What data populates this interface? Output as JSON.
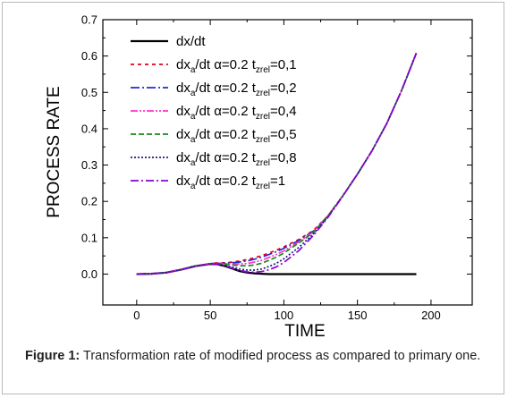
{
  "caption": {
    "label": "Figure 1:",
    "text": "Transformation rate of modified process as compared to primary one."
  },
  "chart_data": {
    "type": "line",
    "title": "",
    "xlabel": "TIME",
    "ylabel": "PROCESS RATE",
    "xlim": [
      -23,
      228
    ],
    "ylim": [
      -0.085,
      0.7
    ],
    "x_ticks": [
      0,
      50,
      100,
      150,
      200
    ],
    "y_ticks": [
      0.0,
      0.1,
      0.2,
      0.3,
      0.4,
      0.5,
      0.6,
      0.7
    ],
    "x_tick_labels": [
      "0",
      "50",
      "100",
      "150",
      "200"
    ],
    "y_tick_labels": [
      "0.0",
      "0.1",
      "0.2",
      "0.3",
      "0.4",
      "0.5",
      "0.6",
      "0.7"
    ],
    "grid": false,
    "legend_position": "top-left",
    "series": [
      {
        "name": "dx/dt",
        "color": "#000000",
        "dash": "solid",
        "x": [
          0,
          10,
          20,
          30,
          40,
          50,
          55,
          60,
          65,
          70,
          75,
          80,
          85,
          90,
          100,
          120,
          150,
          190
        ],
        "y": [
          0.0,
          0.001,
          0.004,
          0.012,
          0.022,
          0.028,
          0.027,
          0.022,
          0.015,
          0.008,
          0.004,
          0.002,
          0.001,
          0.0,
          0.0,
          0.0,
          0.0,
          0.0
        ]
      },
      {
        "name": "dxa/dt α=0.2 tzrel=0,1",
        "legend": {
          "pre": "dx",
          "sub1": "a",
          "mid": "/dt α=0.2 t",
          "sub2": "zrel",
          "post": "=0,1"
        },
        "color": "#e3001b",
        "dash": "4,4",
        "x": [
          0,
          10,
          20,
          30,
          40,
          50,
          55,
          60,
          65,
          70,
          75,
          80,
          85,
          90,
          95,
          100,
          110,
          120,
          130,
          140,
          150,
          160,
          170,
          180,
          190
        ],
        "y": [
          0.0,
          0.001,
          0.004,
          0.012,
          0.022,
          0.029,
          0.031,
          0.031,
          0.033,
          0.036,
          0.04,
          0.045,
          0.051,
          0.058,
          0.066,
          0.075,
          0.095,
          0.12,
          0.16,
          0.215,
          0.275,
          0.34,
          0.415,
          0.505,
          0.608
        ]
      },
      {
        "name": "dxa/dt α=0.2 tzrel=0,2",
        "legend": {
          "pre": "dx",
          "sub1": "a",
          "mid": "/dt α=0.2 t",
          "sub2": "zrel",
          "post": "=0,2"
        },
        "color": "#1f2bd6",
        "dash": "10,3,2,3",
        "x": [
          0,
          10,
          20,
          30,
          40,
          50,
          55,
          60,
          65,
          70,
          75,
          80,
          85,
          90,
          95,
          100,
          110,
          120,
          130,
          140,
          150,
          160,
          170,
          180,
          190
        ],
        "y": [
          0.0,
          0.001,
          0.004,
          0.012,
          0.022,
          0.029,
          0.03,
          0.03,
          0.031,
          0.033,
          0.036,
          0.041,
          0.047,
          0.054,
          0.062,
          0.071,
          0.092,
          0.118,
          0.16,
          0.215,
          0.275,
          0.34,
          0.415,
          0.505,
          0.608
        ]
      },
      {
        "name": "dxa/dt α=0.2 tzrel=0,4",
        "legend": {
          "pre": "dx",
          "sub1": "a",
          "mid": "/dt α=0.2 t",
          "sub2": "zrel",
          "post": "=0,4"
        },
        "color": "#ff33cc",
        "dash": "8,2,2,2,2,2",
        "x": [
          0,
          10,
          20,
          30,
          40,
          50,
          55,
          60,
          65,
          70,
          75,
          80,
          85,
          90,
          95,
          100,
          110,
          120,
          130,
          140,
          150,
          160,
          170,
          180,
          190
        ],
        "y": [
          0.0,
          0.001,
          0.004,
          0.012,
          0.022,
          0.029,
          0.03,
          0.029,
          0.028,
          0.028,
          0.029,
          0.033,
          0.038,
          0.046,
          0.054,
          0.064,
          0.088,
          0.116,
          0.16,
          0.215,
          0.275,
          0.34,
          0.415,
          0.505,
          0.608
        ]
      },
      {
        "name": "dxa/dt α=0.2 tzrel=0,5",
        "legend": {
          "pre": "dx",
          "sub1": "a",
          "mid": "/dt α=0.2 t",
          "sub2": "zrel",
          "post": "=0,5"
        },
        "color": "#1a8a1a",
        "dash": "6,3",
        "x": [
          0,
          10,
          20,
          30,
          40,
          50,
          55,
          60,
          65,
          70,
          75,
          80,
          85,
          90,
          95,
          100,
          110,
          120,
          130,
          140,
          150,
          160,
          170,
          180,
          190
        ],
        "y": [
          0.0,
          0.001,
          0.004,
          0.012,
          0.022,
          0.029,
          0.029,
          0.027,
          0.025,
          0.023,
          0.023,
          0.025,
          0.03,
          0.038,
          0.047,
          0.058,
          0.085,
          0.114,
          0.16,
          0.215,
          0.275,
          0.34,
          0.415,
          0.505,
          0.608
        ]
      },
      {
        "name": "dxa/dt α=0.2 tzrel=0,8",
        "legend": {
          "pre": "dx",
          "sub1": "a",
          "mid": "/dt α=0.2 t",
          "sub2": "zrel",
          "post": "=0,8"
        },
        "color": "#1c1c7a",
        "dash": "2,2",
        "x": [
          0,
          10,
          20,
          30,
          40,
          50,
          55,
          60,
          65,
          70,
          75,
          80,
          85,
          90,
          95,
          100,
          110,
          120,
          130,
          140,
          150,
          160,
          170,
          180,
          190
        ],
        "y": [
          0.0,
          0.001,
          0.004,
          0.012,
          0.022,
          0.028,
          0.028,
          0.024,
          0.019,
          0.014,
          0.011,
          0.011,
          0.014,
          0.021,
          0.03,
          0.042,
          0.073,
          0.11,
          0.158,
          0.215,
          0.275,
          0.34,
          0.415,
          0.505,
          0.608
        ]
      },
      {
        "name": "dxa/dt α=0.2 tzrel=1",
        "legend": {
          "pre": "dx",
          "sub1": "a",
          "mid": "/dt α=0.2 t",
          "sub2": "zrel",
          "post": "=1"
        },
        "color": "#8a00d4",
        "dash": "9,3,2,3",
        "x": [
          0,
          10,
          20,
          30,
          40,
          50,
          55,
          60,
          65,
          70,
          75,
          80,
          85,
          90,
          95,
          100,
          110,
          120,
          130,
          140,
          150,
          160,
          170,
          180,
          190
        ],
        "y": [
          0.0,
          0.001,
          0.004,
          0.012,
          0.022,
          0.028,
          0.027,
          0.023,
          0.016,
          0.01,
          0.006,
          0.005,
          0.007,
          0.012,
          0.02,
          0.032,
          0.064,
          0.106,
          0.156,
          0.214,
          0.275,
          0.34,
          0.415,
          0.505,
          0.608
        ]
      }
    ]
  }
}
